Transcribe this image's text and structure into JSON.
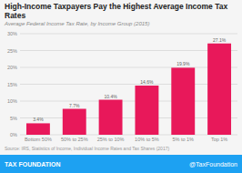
{
  "chart_data": {
    "type": "bar",
    "title": "High-Income Taxpayers Pay the Highest Average Income Tax Rates",
    "subtitle": "Average Federal Income Tax Rate, by Income Group (2015)",
    "source": "Source: IRS, Statistics of Income, Individual Income Rates and Tax Shares (2017)",
    "footer": [
      "TAX FOUNDATION",
      "@TaxFoundation"
    ],
    "categories": [
      "Bottom 50%",
      "50% to 25%",
      "25% to 10%",
      "10% to 5%",
      "5% to 1%",
      "Top 1%"
    ],
    "values": [
      3.4,
      7.7,
      10.4,
      14.6,
      19.9,
      27.1
    ],
    "value_labels": [
      "3.4%",
      "7.7%",
      "10.4%",
      "14.6%",
      "19.9%",
      "27.1%"
    ],
    "data_labels": true,
    "color": "#E8185A",
    "ylim": [
      0,
      30
    ],
    "yticks": [
      {
        "value": 0,
        "label": "0%"
      },
      {
        "value": 5,
        "label": "5%"
      },
      {
        "value": 10,
        "label": "10%"
      },
      {
        "value": 15,
        "label": "15%"
      },
      {
        "value": 20,
        "label": "20%"
      },
      {
        "value": 25,
        "label": "25%"
      },
      {
        "value": 30,
        "label": "30%"
      }
    ],
    "grid": true
  }
}
